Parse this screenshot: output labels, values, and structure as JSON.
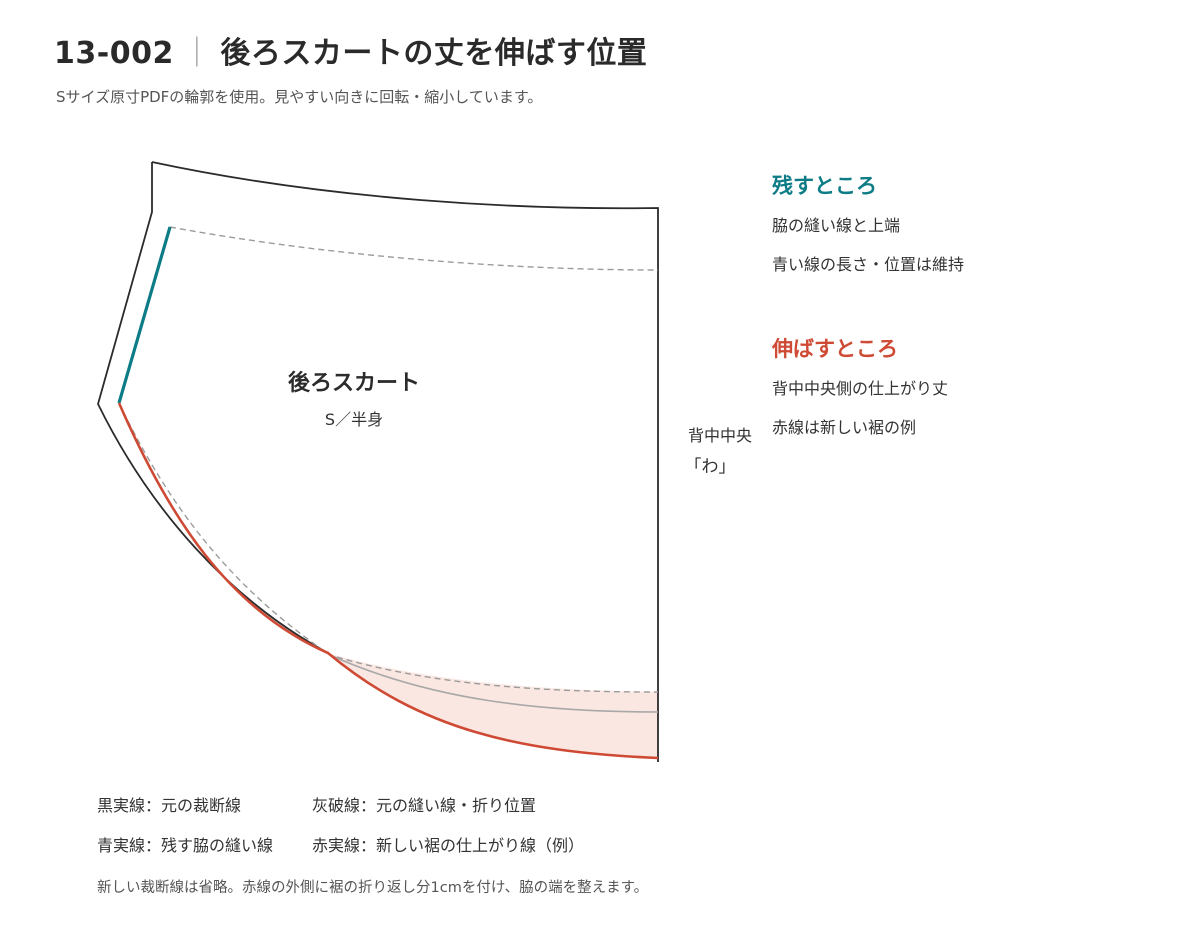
{
  "header": {
    "code": "13-002",
    "separator": "｜",
    "title": "後ろスカートの丈を伸ばす位置",
    "subtitle": "Sサイズ原寸PDFの輪郭を使用。見やすい向きに回転・縮小しています。"
  },
  "diagram": {
    "piece_name": "後ろスカート",
    "piece_size": "S／半身",
    "center_back_label": "背中中央",
    "fold_label": "「わ」"
  },
  "sidebar": {
    "keep": {
      "heading": "残すところ",
      "lines": [
        "脇の縫い線と上端",
        "青い線の長さ・位置は維持"
      ]
    },
    "extend": {
      "heading": "伸ばすところ",
      "lines": [
        "背中中央側の仕上がり丈",
        "赤線は新しい裾の例"
      ]
    }
  },
  "legend": {
    "rows": [
      [
        "黒実線：元の裁断線",
        "灰破線：元の縫い線・折り位置"
      ],
      [
        "青実線：残す脇の縫い線",
        "赤実線：新しい裾の仕上がり線（例）"
      ]
    ]
  },
  "footnote": "新しい裁断線は省略。赤線の外側に裾の折り返し分1cmを付け、脇の端を整えます。",
  "colors": {
    "cut_line": "#2b2b2b",
    "seam_line": "#9b9b9b",
    "keep_line": "#0e7c86",
    "new_hem_line": "#cf4a34",
    "extension_fill": "#fbe4df"
  }
}
